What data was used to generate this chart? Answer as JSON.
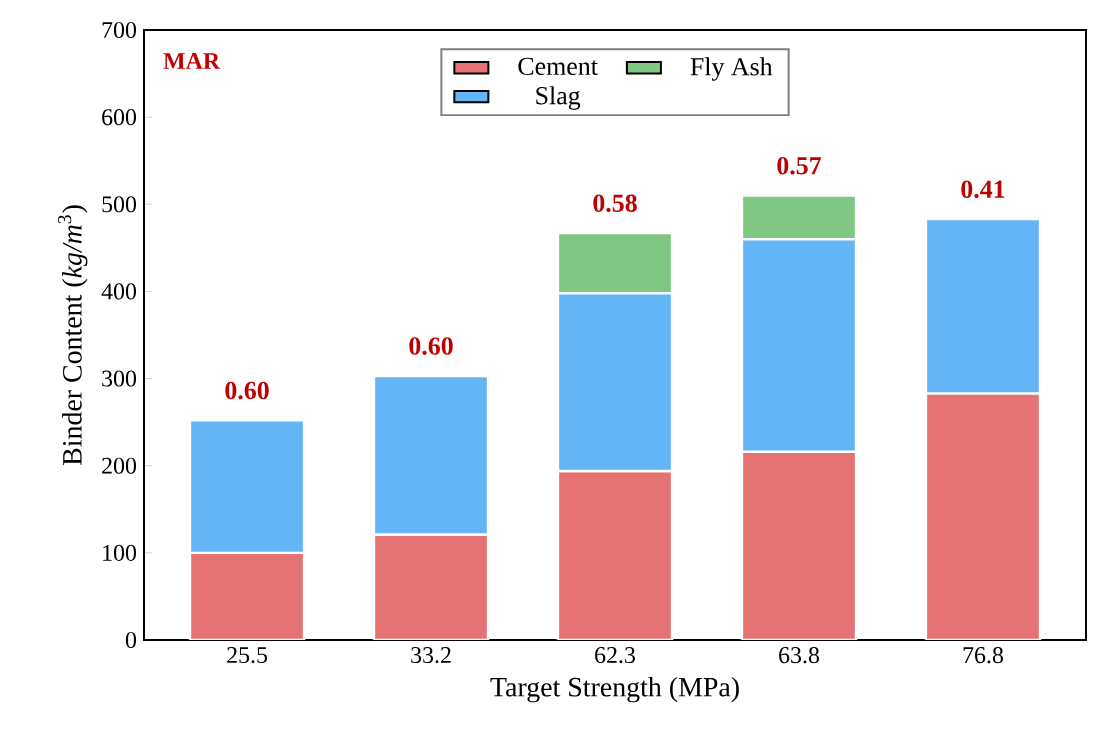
{
  "chart_data": {
    "type": "bar",
    "stacked": true,
    "xlabel": "Target Strength (MPa)",
    "ylabel": "Binder Content (*kg/m*$^{3}$)",
    "categories": [
      "25.5",
      "33.2",
      "62.3",
      "63.8",
      "76.8"
    ],
    "series": [
      {
        "name": "Cement",
        "color": "#e57373",
        "values": [
          100,
          121,
          194,
          216,
          283
        ]
      },
      {
        "name": "Slag",
        "color": "#64b5f6",
        "values": [
          152,
          182,
          204,
          244,
          200
        ]
      },
      {
        "name": "Fly Ash",
        "color": "#81c784",
        "values": [
          null,
          null,
          69,
          50,
          null
        ]
      }
    ],
    "ylim": [
      0,
      700
    ],
    "yticks": [
      0,
      100,
      200,
      300,
      400,
      500,
      600,
      700
    ],
    "legend": "top",
    "grid": false,
    "annotations": [
      "MAR",
      {
        "text": "0.60",
        "x": "25.5",
        "y": 252
      },
      {
        "text": "0.60",
        "x": "33.2",
        "y": 303
      },
      {
        "text": "0.58",
        "x": "62.3",
        "y": 467
      },
      {
        "text": "0.57",
        "x": "63.8",
        "y": 510
      },
      {
        "text": "0.41",
        "x": "76.8",
        "y": 483
      }
    ]
  }
}
